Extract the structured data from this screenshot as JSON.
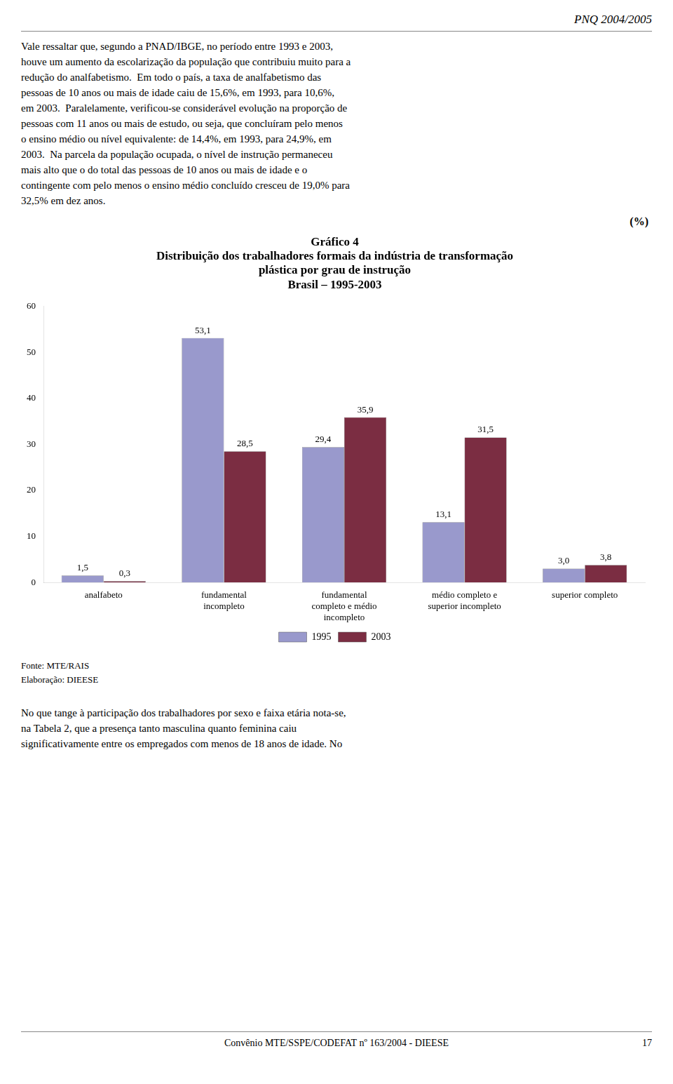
{
  "header": "PNQ 2004/2005",
  "body_top": [
    "Vale ressaltar que, segundo a PNAD/IBGE, no período entre 1993 e 2003,",
    "houve um aumento da escolarização da população que contribuiu muito para a",
    "redução do analfabetismo.  Em todo o país, a taxa de analfabetismo das",
    "pessoas de 10 anos ou mais de idade caiu de 15,6%, em 1993, para 10,6%,",
    "em 2003.  Paralelamente, verificou-se considerável evolução na proporção de",
    "pessoas com 11 anos ou mais de estudo, ou seja, que concluíram pelo menos",
    "o ensino médio ou nível equivalente: de 14,4%, em 1993, para 24,9%, em",
    "2003.  Na parcela da população ocupada, o nível de instrução permaneceu",
    "mais alto que o do total das pessoas de 10 anos ou mais de idade e o",
    "contingente com pelo menos o ensino médio concluído cresceu de 19,0% para",
    "32,5% em dez anos."
  ],
  "chart_data": {
    "type": "bar",
    "title": "Gráfico 4\nDistribuição dos trabalhadores formais da indústria de transformação\nplástica por grau de instrução\nBrasil – 1995-2003",
    "ylabel": "(%)",
    "categories": [
      "analfabeto",
      "fundamental\nincompleto",
      "fundamental\ncompleto e médio\nincompleto",
      "médio completo e\nsuperior incompleto",
      "superior completo"
    ],
    "series": [
      {
        "name": "1995",
        "color": "#9999cc",
        "values": [
          1.5,
          53.1,
          29.4,
          13.1,
          3.0
        ],
        "value_labels": [
          "1,5",
          "53,1",
          "29,4",
          "13,1",
          "3,0"
        ]
      },
      {
        "name": "2003",
        "color": "#7b2d42",
        "values": [
          0.3,
          28.5,
          35.9,
          31.5,
          3.8
        ],
        "value_labels": [
          "0,3",
          "28,5",
          "35,9",
          "31,5",
          "3,8"
        ]
      }
    ],
    "ylim": [
      0,
      60
    ],
    "yticks": [
      0,
      10,
      20,
      30,
      40,
      50,
      60
    ],
    "grid": false,
    "legend": "bottom",
    "data_labels": true
  },
  "source": [
    "Fonte: MTE/RAIS",
    "Elaboração: DIEESE"
  ],
  "body_bottom": [
    "No que tange à participação dos trabalhadores por sexo e faixa etária nota-se,",
    "na Tabela 2, que a presença tanto masculina quanto feminina caiu",
    "significativamente entre os empregados com menos de 18 anos de idade. No"
  ],
  "footer": {
    "text": "Convênio MTE/SSPE/CODEFAT nº 163/2004 - DIEESE",
    "page": "17"
  }
}
